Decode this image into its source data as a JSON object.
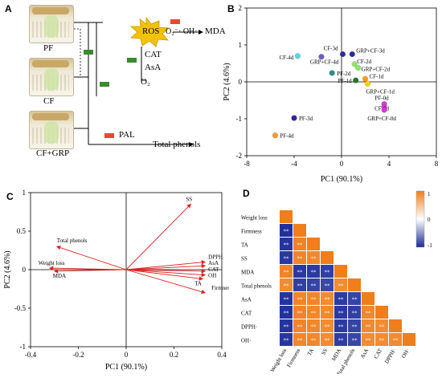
{
  "panel_a": {
    "letter": "A",
    "samples": [
      "PF",
      "CF",
      "CF+GRP"
    ],
    "ros_label": "ROS",
    "radicals_label": "O₂⁻· OH·",
    "mda_label": "MDA",
    "cat_label": "CAT",
    "asa_label": "AsA",
    "o2_label": "O₂",
    "pal_label": "PAL",
    "total_phenols_label": "Total phenols",
    "colors": {
      "up": "#e34a33",
      "down": "#3a8a2e",
      "ros": "#f2c200"
    }
  },
  "chart_data": [
    {
      "panel": "B",
      "type": "scatter",
      "xlabel": "PC1 (90.1%)",
      "ylabel": "PC2 (4.6%)",
      "xlim": [
        -8,
        8
      ],
      "ylim": [
        -2,
        2
      ],
      "xticks": [
        -8,
        -4,
        0,
        4,
        8
      ],
      "yticks": [
        -2,
        -1,
        0,
        1,
        2
      ],
      "points": [
        {
          "label": "CF-3d",
          "x": 0.1,
          "y": 0.75,
          "color": "#2b2b9f"
        },
        {
          "label": "GRP+CF-3d",
          "x": 0.9,
          "y": 0.75,
          "color": "#2b2b9f"
        },
        {
          "label": "CF-4d",
          "x": -3.7,
          "y": 0.7,
          "color": "#5bd6e6"
        },
        {
          "label": "GRP+CF-4d",
          "x": -1.7,
          "y": 0.68,
          "color": "#6a5acd"
        },
        {
          "label": "CF-2d",
          "x": 1.1,
          "y": 0.48,
          "color": "#8fe56b"
        },
        {
          "label": "GRP+CF-2d",
          "x": 1.4,
          "y": 0.38,
          "color": "#8fe56b"
        },
        {
          "label": "PF-2d",
          "x": -0.8,
          "y": 0.24,
          "color": "#2a8f8f"
        },
        {
          "label": "PF-1d",
          "x": 1.2,
          "y": 0.04,
          "color": "#1f7a2a"
        },
        {
          "label": "CF-1d",
          "x": 2.0,
          "y": 0.08,
          "color": "#ff9a1a"
        },
        {
          "label": "GRP+CF-1d",
          "x": 2.2,
          "y": -0.05,
          "color": "#ffd000"
        },
        {
          "label": "PF-0d",
          "x": 3.6,
          "y": -0.6,
          "color": "#d63ad6"
        },
        {
          "label": "CF-0d",
          "x": 3.6,
          "y": -0.68,
          "color": "#d63ad6"
        },
        {
          "label": "GRP+CF-0d",
          "x": 3.6,
          "y": -0.76,
          "color": "#d63ad6"
        },
        {
          "label": "PF-3d",
          "x": -4.0,
          "y": -0.98,
          "color": "#3a1fa8"
        },
        {
          "label": "PF-4d",
          "x": -5.6,
          "y": -1.45,
          "color": "#f39c3a"
        }
      ]
    },
    {
      "panel": "C",
      "type": "line",
      "xlabel": "PC1 (90.1%)",
      "ylabel": "PC2 (4.6%)",
      "xlim": [
        -0.4,
        0.4
      ],
      "ylim": [
        -1.0,
        1.0
      ],
      "xticks": [
        -0.4,
        -0.2,
        0.0,
        0.2,
        0.4
      ],
      "yticks": [
        -1.0,
        -0.5,
        0.0,
        0.5,
        1.0
      ],
      "vectors": [
        {
          "label": "SS",
          "x": 0.27,
          "y": 0.85
        },
        {
          "label": "Total phenols",
          "x": -0.29,
          "y": 0.3
        },
        {
          "label": "DPPH",
          "x": 0.33,
          "y": 0.1
        },
        {
          "label": "AsA",
          "x": 0.33,
          "y": 0.05
        },
        {
          "label": "CAT",
          "x": 0.33,
          "y": -0.02
        },
        {
          "label": "OH",
          "x": 0.33,
          "y": -0.07
        },
        {
          "label": "TA",
          "x": 0.32,
          "y": -0.12
        },
        {
          "label": "Weight loss",
          "x": -0.32,
          "y": 0.02
        },
        {
          "label": "MDA",
          "x": -0.3,
          "y": -0.02
        },
        {
          "label": "Firmness",
          "x": 0.33,
          "y": -0.3
        }
      ],
      "arrow_color": "#e0231f"
    },
    {
      "panel": "D",
      "type": "heatmap",
      "variables": [
        "Weight loss",
        "Firmness",
        "TA",
        "SS",
        "MDA",
        "Total phenols",
        "AsA",
        "CAT",
        "DPPH·",
        "OH·"
      ],
      "matrix": [
        [
          1
        ],
        [
          -0.97,
          1
        ],
        [
          -0.95,
          0.96,
          1
        ],
        [
          -0.93,
          0.94,
          0.92,
          1
        ],
        [
          0.95,
          -0.93,
          -0.92,
          -0.9,
          1
        ],
        [
          0.9,
          -0.9,
          -0.88,
          -0.86,
          0.9,
          1
        ],
        [
          -0.95,
          0.94,
          0.93,
          0.9,
          -0.92,
          -0.88,
          1
        ],
        [
          -0.96,
          0.95,
          0.93,
          0.91,
          -0.93,
          -0.9,
          0.92,
          1
        ],
        [
          -0.95,
          0.94,
          0.92,
          0.9,
          -0.92,
          -0.88,
          0.91,
          0.9,
          1
        ],
        [
          -0.94,
          0.93,
          0.92,
          0.89,
          -0.91,
          -0.87,
          0.9,
          0.9,
          0.9,
          1
        ]
      ],
      "significance": [
        [
          ""
        ],
        [
          "**",
          ""
        ],
        [
          "**",
          "**",
          ""
        ],
        [
          "**",
          "**",
          "**",
          ""
        ],
        [
          "**",
          "**",
          "**",
          "**",
          ""
        ],
        [
          "**",
          "**",
          "**",
          "**",
          "**",
          ""
        ],
        [
          "**",
          "**",
          "**",
          "**",
          "**",
          "**",
          ""
        ],
        [
          "**",
          "**",
          "**",
          "**",
          "**",
          "**",
          "**",
          ""
        ],
        [
          "**",
          "**",
          "**",
          "**",
          "**",
          "**",
          "**",
          "**",
          ""
        ],
        [
          "**",
          "**",
          "**",
          "**",
          "**",
          "**",
          "**",
          "**",
          "**",
          ""
        ]
      ],
      "colorbar": {
        "min": -1,
        "mid": 0,
        "max": 1,
        "low_color": "#1a2a9a",
        "mid_color": "#ffffff",
        "high_color": "#f07e1a"
      }
    }
  ]
}
